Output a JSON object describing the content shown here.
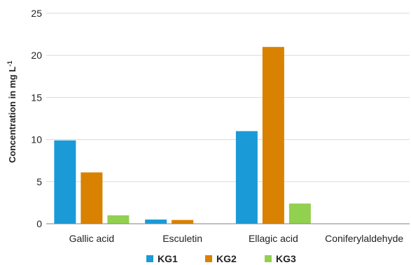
{
  "chart_data": {
    "type": "bar",
    "title": "",
    "xlabel": "",
    "ylabel": "Concentration in mg L",
    "ylabel_superscript": "-1",
    "categories": [
      "Gallic acid",
      "Esculetin",
      "Ellagic acid",
      "Coniferylaldehyde"
    ],
    "series": [
      {
        "name": "KG1",
        "color": "#1a9ad6",
        "values": [
          9.9,
          0.5,
          11.0,
          0
        ]
      },
      {
        "name": "KG2",
        "color": "#d98100",
        "values": [
          6.1,
          0.45,
          21.0,
          0
        ]
      },
      {
        "name": "KG3",
        "color": "#92d050",
        "values": [
          1.0,
          0,
          2.4,
          0
        ]
      }
    ],
    "ylim": [
      0,
      25
    ],
    "yticks": [
      0,
      5,
      10,
      15,
      20,
      25
    ],
    "grid": "horizontal",
    "legend_position": "bottom"
  }
}
